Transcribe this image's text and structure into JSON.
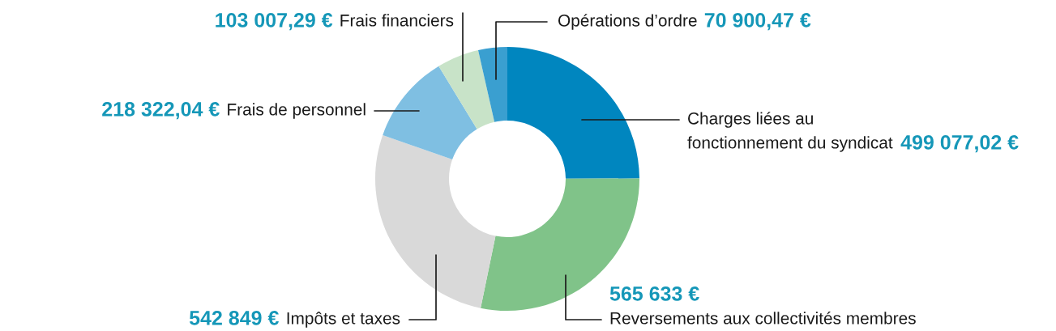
{
  "chart_data": {
    "type": "donut",
    "categories": [
      "Charges liées au fonctionnement du syndicat",
      "Reversements aux collectivités membres",
      "Impôts et taxes",
      "Frais de personnel",
      "Frais financiers",
      "Opérations d’ordre"
    ],
    "values": [
      499077.02,
      565633,
      542849,
      218322.04,
      103007.29,
      70900.47
    ],
    "value_labels": [
      "499 077,02 €",
      "565 633 €",
      "542 849 €",
      "218 322,04 €",
      "103 007,29 €",
      "70 900,47 €"
    ],
    "colors": [
      "#0086bf",
      "#80c389",
      "#d9d9d9",
      "#7fbfe2",
      "#c8e3c8",
      "#3a9fd0"
    ]
  }
}
